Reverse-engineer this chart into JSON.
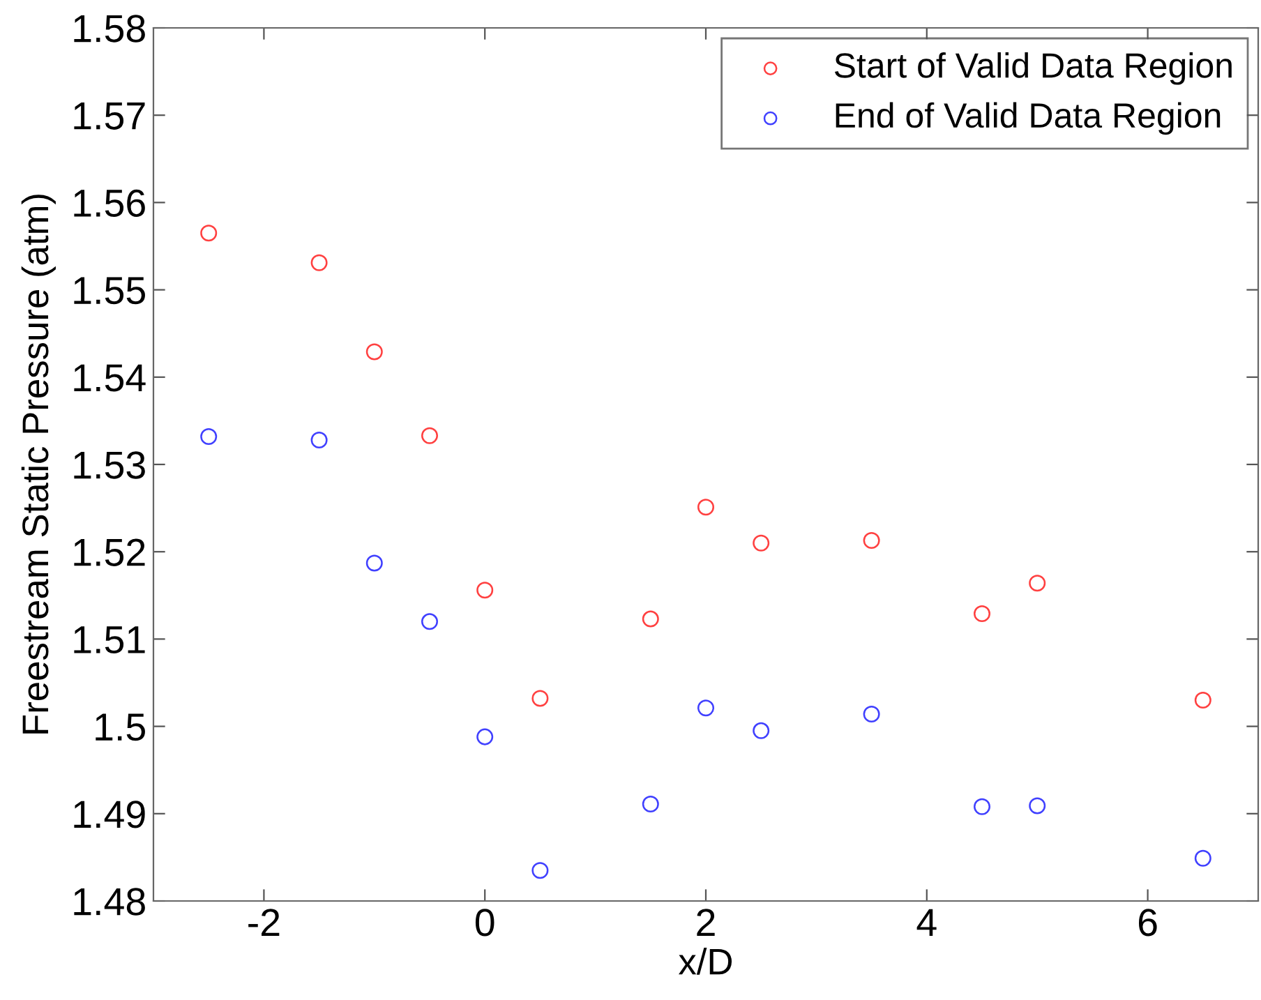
{
  "chart_data": {
    "type": "scatter",
    "xlabel": "x/D",
    "ylabel": "Freestream Static Pressure (atm)",
    "x": [
      -2.5,
      -1.5,
      -1,
      -0.5,
      0,
      0.5,
      1.5,
      2,
      2.5,
      3.5,
      4.5,
      5,
      6.5
    ],
    "series": [
      {
        "name": "Start of Valid Data Region",
        "color": "#ff0000",
        "values": [
          1.5565,
          1.5531,
          1.5429,
          1.5333,
          1.5156,
          1.5032,
          1.5123,
          1.5251,
          1.521,
          1.5213,
          1.5129,
          1.5164,
          1.503
        ]
      },
      {
        "name": "End of Valid Data Region",
        "color": "#0000ff",
        "values": [
          1.5332,
          1.5328,
          1.5187,
          1.512,
          1.4988,
          1.4835,
          1.4911,
          1.5021,
          1.4995,
          1.5014,
          1.4908,
          1.4909,
          1.4849
        ]
      }
    ],
    "xlim": [
      -3,
      7
    ],
    "xticks": [
      -2,
      0,
      2,
      4,
      6
    ],
    "ylim": [
      1.48,
      1.58
    ],
    "yticks": [
      1.48,
      1.49,
      {
        "value": 1.5,
        "label": "1.5"
      },
      1.51,
      1.52,
      1.53,
      1.54,
      1.55,
      1.56,
      1.57,
      1.58
    ],
    "marker": "circle",
    "legend": "top right",
    "grid": false
  }
}
